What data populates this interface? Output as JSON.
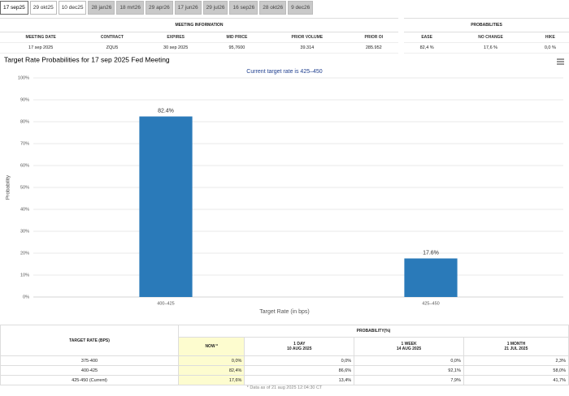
{
  "tabs": [
    "17 sep25",
    "29 okt25",
    "10 dec25",
    "28 jan26",
    "18 mrt26",
    "29 apr26",
    "17 jun26",
    "29 jul26",
    "16 sep26",
    "28 okt26",
    "9 dec26"
  ],
  "active_tab": 0,
  "meeting_info": {
    "title": "MEETING INFORMATION",
    "headers": [
      "MEETING DATE",
      "CONTRACT",
      "EXPIRES",
      "MID PRICE",
      "PRIOR VOLUME",
      "PRIOR OI"
    ],
    "values": [
      "17 sep 2025",
      "ZQU5",
      "30 sep 2025",
      "95,7600",
      "39.314",
      "285.952"
    ]
  },
  "probabilities": {
    "title": "PROBABILITIES",
    "headers": [
      "EASE",
      "NO CHANGE",
      "HIKE"
    ],
    "values": [
      "82,4 %",
      "17,6 %",
      "0,0 %"
    ]
  },
  "chart_data": {
    "type": "bar",
    "title": "Target Rate Probabilities for 17 sep 2025 Fed Meeting",
    "subtitle": "Current target rate is 425–450",
    "xlabel": "Target Rate (in bps)",
    "ylabel": "Probability",
    "categories": [
      "400–425",
      "425–450"
    ],
    "values": [
      82.4,
      17.6
    ],
    "value_labels": [
      "82.4%",
      "17.6%"
    ],
    "color": "#2a7ab9",
    "ylim": [
      0,
      100
    ],
    "yticks": [
      {
        "value": 0,
        "label": "0%"
      },
      {
        "value": 10,
        "label": "10%"
      },
      {
        "value": 20,
        "label": "20%"
      },
      {
        "value": 30,
        "label": "30%"
      },
      {
        "value": 40,
        "label": "40%"
      },
      {
        "value": 50,
        "label": "50%"
      },
      {
        "value": 60,
        "label": "60%"
      },
      {
        "value": 70,
        "label": "70%"
      },
      {
        "value": 80,
        "label": "80%"
      },
      {
        "value": 90,
        "label": "90%"
      },
      {
        "value": 100,
        "label": "100%"
      }
    ],
    "grid": true
  },
  "history_table": {
    "row_header": "TARGET RATE (BPS)",
    "title": "PROBABILITY(%)",
    "columns": [
      {
        "label": "NOW *"
      },
      {
        "label": "1 DAY",
        "date": "10 AUG 2025"
      },
      {
        "label": "1 WEEK",
        "date": "14 AUG 2025"
      },
      {
        "label": "1 MONTH",
        "date": "21 JUL 2025"
      }
    ],
    "rows": [
      [
        "375-400",
        "0,0%",
        "0,0%",
        "0,0%",
        "2,3%"
      ],
      [
        "400-425",
        "82,4%",
        "86,6%",
        "92,1%",
        "58,0%"
      ],
      [
        "425-450 (Current)",
        "17,6%",
        "13,4%",
        "7,9%",
        "41,7%"
      ]
    ],
    "note": "* Data as of 21 aug 2025 12:04:30 CT"
  }
}
